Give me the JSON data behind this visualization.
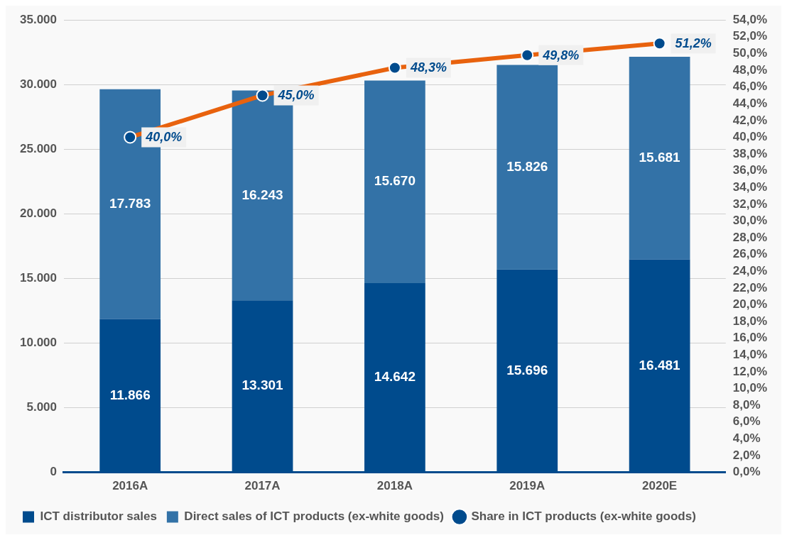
{
  "chart_data": {
    "type": "bar",
    "stacked": true,
    "categories": [
      "2016A",
      "2017A",
      "2018A",
      "2019A",
      "2020E"
    ],
    "series": [
      {
        "name": "ICT distributor sales",
        "color": "#004b8d",
        "values": [
          11866,
          13301,
          14642,
          15696,
          16481
        ],
        "value_labels": [
          "11.866",
          "13.301",
          "14.642",
          "15.696",
          "16.481"
        ]
      },
      {
        "name": "Direct sales of ICT products (ex-white goods)",
        "color": "#3372a7",
        "values": [
          17783,
          16243,
          15670,
          15826,
          15681
        ],
        "value_labels": [
          "17.783",
          "16.243",
          "15.670",
          "15.826",
          "15.681"
        ]
      },
      {
        "name": "Share in ICT products (ex-white goods)",
        "type": "line",
        "axis": "y2",
        "color": "#e8620e",
        "marker": "circle",
        "values": [
          40.0,
          45.0,
          48.3,
          49.8,
          51.2
        ],
        "value_labels": [
          "40,0%",
          "45,0%",
          "48,3%",
          "49,8%",
          "51,2%"
        ]
      }
    ],
    "ylim": [
      0,
      35000
    ],
    "yticks": [
      {
        "value": 0,
        "label": "0"
      },
      {
        "value": 5000,
        "label": "5.000"
      },
      {
        "value": 10000,
        "label": "10.000"
      },
      {
        "value": 15000,
        "label": "15.000"
      },
      {
        "value": 20000,
        "label": "20.000"
      },
      {
        "value": 25000,
        "label": "25.000"
      },
      {
        "value": 30000,
        "label": "30.000"
      },
      {
        "value": 35000,
        "label": "35.000"
      }
    ],
    "y2lim": [
      0,
      54
    ],
    "y2ticks": [
      {
        "value": 0,
        "label": "0,0%"
      },
      {
        "value": 2,
        "label": "2,0%"
      },
      {
        "value": 4,
        "label": "4,0%"
      },
      {
        "value": 6,
        "label": "6,0%"
      },
      {
        "value": 8,
        "label": "8,0%"
      },
      {
        "value": 10,
        "label": "10,0%"
      },
      {
        "value": 12,
        "label": "12,0%"
      },
      {
        "value": 14,
        "label": "14,0%"
      },
      {
        "value": 16,
        "label": "16,0%"
      },
      {
        "value": 18,
        "label": "18,0%"
      },
      {
        "value": 20,
        "label": "20,0%"
      },
      {
        "value": 22,
        "label": "22,0%"
      },
      {
        "value": 24,
        "label": "24,0%"
      },
      {
        "value": 26,
        "label": "26,0%"
      },
      {
        "value": 28,
        "label": "28,0%"
      },
      {
        "value": 30,
        "label": "30,0%"
      },
      {
        "value": 32,
        "label": "32,0%"
      },
      {
        "value": 34,
        "label": "34,0%"
      },
      {
        "value": 36,
        "label": "36,0%"
      },
      {
        "value": 38,
        "label": "38,0%"
      },
      {
        "value": 40,
        "label": "40,0%"
      },
      {
        "value": 42,
        "label": "42,0%"
      },
      {
        "value": 44,
        "label": "44,0%"
      },
      {
        "value": 46,
        "label": "46,0%"
      },
      {
        "value": 48,
        "label": "48,0%"
      },
      {
        "value": 50,
        "label": "50,0%"
      },
      {
        "value": 52,
        "label": "52,0%"
      },
      {
        "value": 54,
        "label": "54,0%"
      }
    ],
    "grid": "y",
    "legend": "bottom"
  }
}
